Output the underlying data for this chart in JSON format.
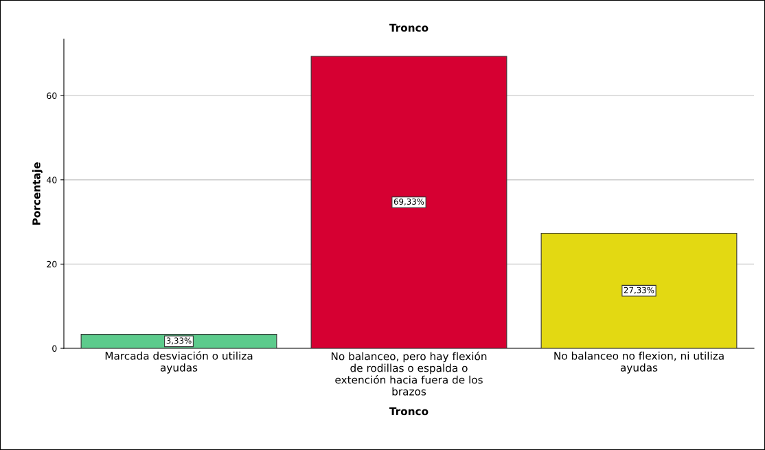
{
  "chart_data": {
    "type": "bar",
    "title": "Tronco",
    "xlabel": "Tronco",
    "ylabel": "Porcentaje",
    "categories": [
      "Marcada desviación o utiliza\nayudas",
      "No balanceo, pero hay flexión\nde rodillas o espalda o\nextención hacia fuera de los\nbrazos",
      "No balanceo no flexion, ni utiliza\nayudas"
    ],
    "values": [
      3.33,
      69.33,
      27.33
    ],
    "colors": [
      "#5ccb8c",
      "#d60032",
      "#e3d912"
    ],
    "value_labels": [
      "3,33%",
      "69,33%",
      "27,33%"
    ],
    "ylim": [
      0,
      73.4
    ],
    "yticks": [
      0,
      20,
      40,
      60
    ],
    "grid": "y"
  }
}
